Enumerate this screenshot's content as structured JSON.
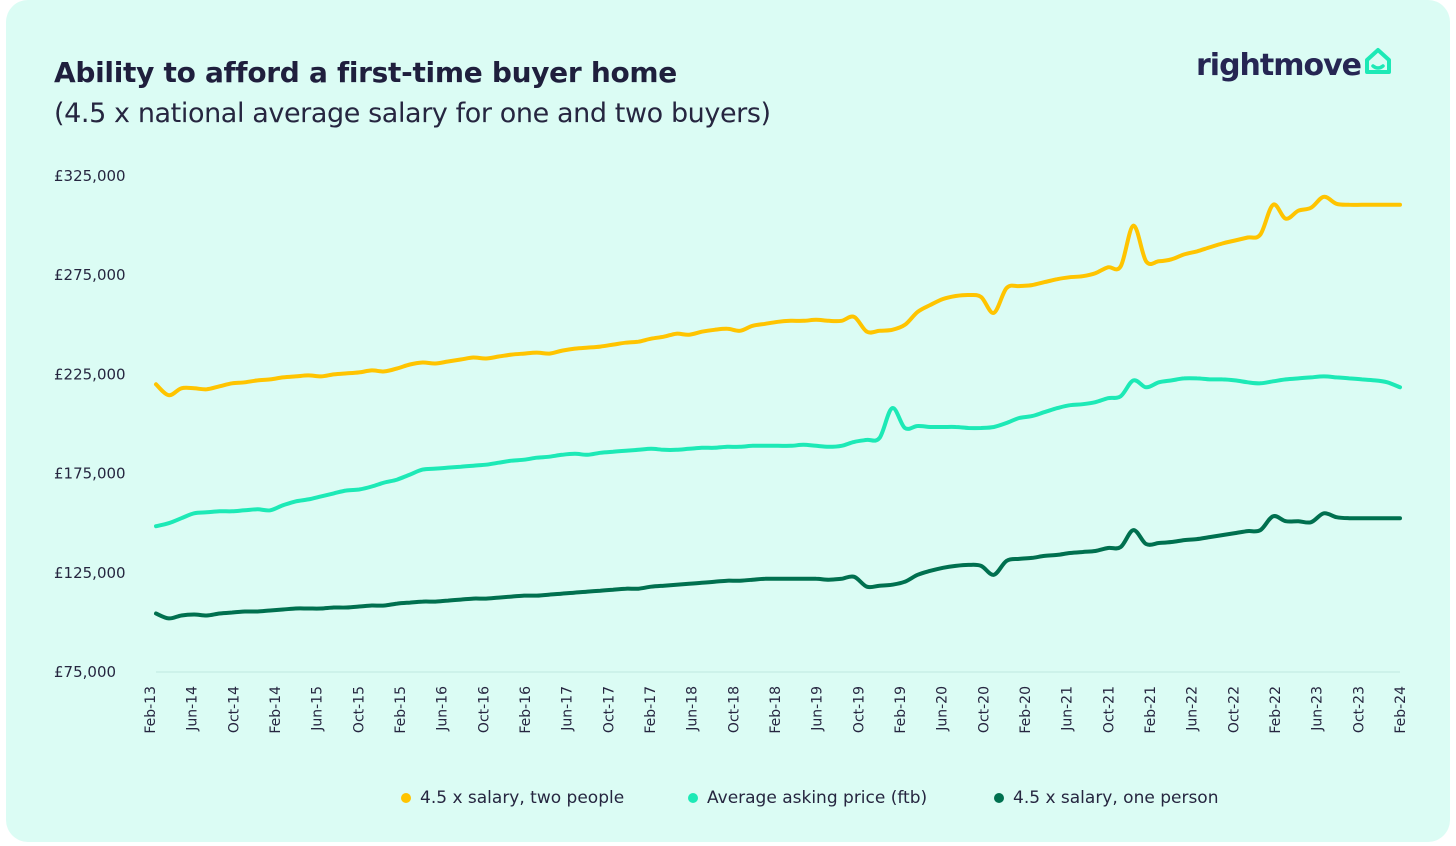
{
  "header": {
    "title": "Ability to afford a first-time buyer home",
    "subtitle": "(4.5 x national average salary for one and two buyers)"
  },
  "brand": {
    "name": "rightmove",
    "icon": "house-icon",
    "color": "#262653",
    "accent": "#1de9b6"
  },
  "chart_data": {
    "type": "line",
    "y_ticks": [
      "£325,000",
      "£275,000",
      "£225,000",
      "£175,000",
      "£125,000",
      "£75,000"
    ],
    "ylim": [
      75000,
      325000
    ],
    "x_ticks": [
      "Feb-13",
      "Jun-14",
      "Oct-14",
      "Feb-14",
      "Jun-15",
      "Oct-15",
      "Feb-15",
      "Jun-16",
      "Oct-16",
      "Feb-16",
      "Jun-17",
      "Oct-17",
      "Feb-17",
      "Jun-18",
      "Oct-18",
      "Feb-18",
      "Jun-19",
      "Oct-19",
      "Feb-19",
      "Jun-20",
      "Oct-20",
      "Feb-20",
      "Jun-21",
      "Oct-21",
      "Feb-21",
      "Jun-22",
      "Oct-22",
      "Feb-22",
      "Jun-23",
      "Oct-23",
      "Feb-24"
    ],
    "grid": false,
    "legend_position": "bottom",
    "series": [
      {
        "name": "4.5 x salary, two people",
        "color": "#ffc400",
        "values": [
          220000,
          214500,
          218000,
          218000,
          217500,
          219000,
          220500,
          221000,
          222000,
          222500,
          223500,
          224000,
          224500,
          224000,
          225000,
          225500,
          226000,
          227000,
          226500,
          228000,
          230000,
          231000,
          230500,
          231500,
          232500,
          233500,
          233000,
          234000,
          235000,
          235500,
          236000,
          235500,
          237000,
          238000,
          238500,
          239000,
          240000,
          241000,
          241500,
          243000,
          244000,
          245500,
          245000,
          246500,
          247500,
          248000,
          247000,
          249500,
          250500,
          251500,
          252000,
          252000,
          252500,
          252000,
          252000,
          254000,
          246500,
          247000,
          247500,
          250000,
          256500,
          260000,
          263000,
          264500,
          265000,
          264000,
          256000,
          268500,
          269500,
          270000,
          271500,
          273000,
          274000,
          274500,
          276000,
          279000,
          279500,
          300000,
          282000,
          282000,
          283000,
          285500,
          287000,
          289000,
          291000,
          292500,
          294000,
          295500,
          310500,
          303500,
          307500,
          309000,
          314500,
          311000,
          310500,
          310500,
          310500,
          310500,
          310500
        ]
      },
      {
        "name": "Average asking price (ftb)",
        "color": "#1de9b6",
        "values": [
          148500,
          150000,
          152500,
          155000,
          155500,
          156000,
          156000,
          156500,
          157000,
          156500,
          159000,
          161000,
          162000,
          163500,
          165000,
          166500,
          167000,
          168500,
          170500,
          172000,
          174500,
          177000,
          177500,
          178000,
          178500,
          179000,
          179500,
          180500,
          181500,
          182000,
          183000,
          183500,
          184500,
          185000,
          184500,
          185500,
          186000,
          186500,
          187000,
          187500,
          187000,
          187000,
          187500,
          188000,
          188000,
          188500,
          188500,
          189000,
          189000,
          189000,
          189000,
          189500,
          189000,
          188500,
          189000,
          191000,
          192000,
          193000,
          208000,
          198000,
          199000,
          198500,
          198500,
          198500,
          198000,
          198000,
          198500,
          200500,
          203000,
          204000,
          206000,
          208000,
          209500,
          210000,
          211000,
          213000,
          214000,
          222000,
          218500,
          221000,
          222000,
          223000,
          223000,
          222500,
          222500,
          222000,
          221000,
          220500,
          221500,
          222500,
          223000,
          223500,
          224000,
          223500,
          223000,
          222500,
          222000,
          221000,
          218500
        ]
      },
      {
        "name": "4.5 x salary, one person",
        "color": "#00704f",
        "values": [
          104500,
          102000,
          103500,
          104000,
          103500,
          104500,
          105000,
          105500,
          105500,
          106000,
          106500,
          107000,
          107000,
          107000,
          107500,
          107500,
          108000,
          108500,
          108500,
          109500,
          110000,
          110500,
          110500,
          111000,
          111500,
          112000,
          112000,
          112500,
          113000,
          113500,
          113500,
          114000,
          114500,
          115000,
          115500,
          116000,
          116500,
          117000,
          117000,
          118000,
          118500,
          119000,
          119500,
          120000,
          120500,
          121000,
          121000,
          121500,
          122000,
          122000,
          122000,
          122000,
          122000,
          121500,
          122000,
          123000,
          118000,
          118500,
          119000,
          120500,
          124000,
          126000,
          127500,
          128500,
          129000,
          128500,
          124000,
          131000,
          132000,
          132500,
          133500,
          134000,
          135000,
          135500,
          136000,
          137500,
          138000,
          146500,
          139500,
          140000,
          140500,
          141500,
          142000,
          143000,
          144000,
          145000,
          146000,
          146500,
          153500,
          151000,
          151000,
          150500,
          155000,
          153000,
          152500,
          152500,
          152500,
          152500,
          152500
        ]
      }
    ]
  }
}
